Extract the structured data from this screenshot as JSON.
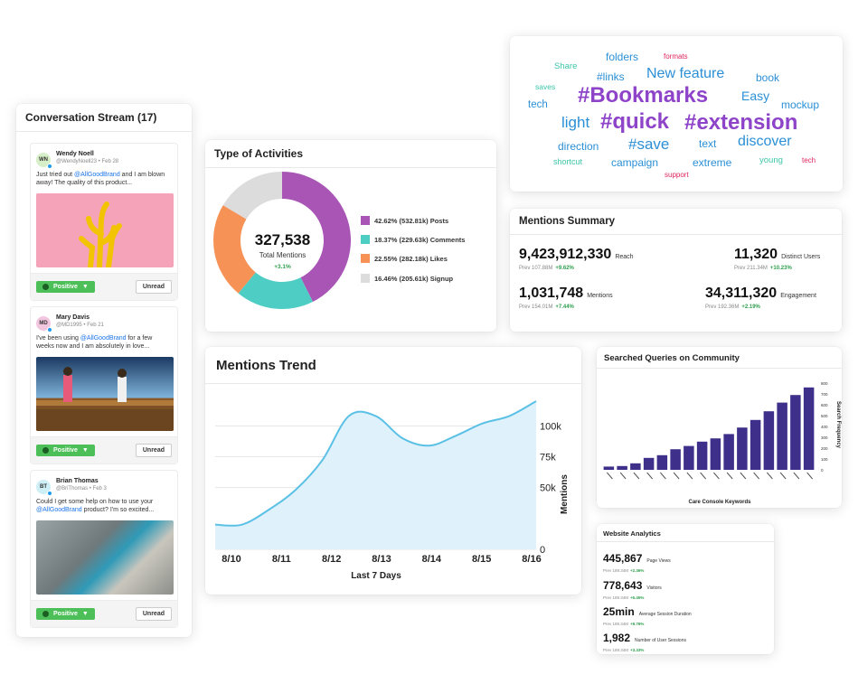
{
  "conversation": {
    "title": "Conversation Stream (17)",
    "posts": [
      {
        "initials": "WN",
        "name": "Wendy Noell",
        "meta": "@WendyNoell23 • Feb 28",
        "text_before": "Just tried out ",
        "mention": "@AllGoodBrand",
        "text_after": " and I am blown away! The quality of this product...",
        "sentiment": "Positive",
        "unread": "Unread"
      },
      {
        "initials": "MD",
        "name": "Mary Davis",
        "meta": "@MD1995 • Feb 21",
        "text_before": "I've been using ",
        "mention": "@AllGoodBrand",
        "text_after": " for a few weeks now and I am absolutely in love...",
        "sentiment": "Positive",
        "unread": "Unread"
      },
      {
        "initials": "BT",
        "name": "Brian Thomas",
        "meta": "@BriThomas • Feb 3",
        "text_before": "Could I get some help on how to use your ",
        "mention": "@AllGoodBrand",
        "text_after": " product? I'm so excited...",
        "sentiment": "Positive",
        "unread": "Unread"
      }
    ]
  },
  "activities": {
    "title": "Type of Activities",
    "total": "327,538",
    "total_label": "Total Mentions",
    "change": "+3.1%",
    "items": [
      {
        "label": "42.62% (532.81k) Posts",
        "pct": 42.62,
        "color": "#a855b5"
      },
      {
        "label": "18.37% (229.63k) Comments",
        "pct": 18.37,
        "color": "#4ecdc4"
      },
      {
        "label": "22.55% (282.18k) Likes",
        "pct": 22.55,
        "color": "#f79256"
      },
      {
        "label": "16.46% (205.61k) Signup",
        "pct": 16.46,
        "color": "#dcdcdc"
      }
    ]
  },
  "wordcloud": {
    "words": [
      {
        "text": "folders",
        "color": "#2b8fd6"
      },
      {
        "text": "formats",
        "color": "#e0245e"
      },
      {
        "text": "Share",
        "color": "#3cc5a8"
      },
      {
        "text": "#links",
        "color": "#2b8fd6"
      },
      {
        "text": "New feature",
        "color": "#2b8fd6"
      },
      {
        "text": "book",
        "color": "#2b8fd6"
      },
      {
        "text": "saves",
        "color": "#3cc5a8"
      },
      {
        "text": "#Bookmarks",
        "color": "#8e44c9"
      },
      {
        "text": "Easy",
        "color": "#2b8fd6"
      },
      {
        "text": "tech",
        "color": "#2b8fd6"
      },
      {
        "text": "mockup",
        "color": "#2b8fd6"
      },
      {
        "text": "light",
        "color": "#2b8fd6"
      },
      {
        "text": "#quick",
        "color": "#8e44c9"
      },
      {
        "text": "#extension",
        "color": "#8e44c9"
      },
      {
        "text": "direction",
        "color": "#2b8fd6"
      },
      {
        "text": "#save",
        "color": "#2b8fd6"
      },
      {
        "text": "text",
        "color": "#2b8fd6"
      },
      {
        "text": "discover",
        "color": "#2b8fd6"
      },
      {
        "text": "shortcut",
        "color": "#3cc5a8"
      },
      {
        "text": "campaign",
        "color": "#2b8fd6"
      },
      {
        "text": "extreme",
        "color": "#2b8fd6"
      },
      {
        "text": "young",
        "color": "#3cc5a8"
      },
      {
        "text": "tech",
        "color": "#e0245e"
      },
      {
        "text": "support",
        "color": "#e0245e"
      }
    ]
  },
  "summary": {
    "title": "Mentions Summary",
    "metrics": [
      {
        "value": "9,423,912,330",
        "label": "Reach",
        "prev": "Prev 107.88M",
        "change": "+9.62%"
      },
      {
        "value": "11,320",
        "label": "Distinct Users",
        "prev": "Prev 211.34M",
        "change": "+10.23%"
      },
      {
        "value": "1,031,748",
        "label": "Mentions",
        "prev": "Prev 154.01M",
        "change": "+7.44%"
      },
      {
        "value": "34,311,320",
        "label": "Engagement",
        "prev": "Prev 192.36M",
        "change": "+2.19%"
      }
    ]
  },
  "trend": {
    "title": "Mentions Trend",
    "xlabel": "Last 7 Days",
    "ylabel": "Mentions",
    "x_ticks": [
      "8/10",
      "8/11",
      "8/12",
      "8/13",
      "8/14",
      "8/15",
      "8/16"
    ],
    "y_ticks": [
      "100k",
      "75k",
      "50k",
      "0"
    ]
  },
  "queries": {
    "title": "Searched Queries on Community",
    "xlabel": "Care Console Keywords",
    "ylabel": "Search Frequency",
    "y_ticks": [
      "800",
      "700",
      "600",
      "500",
      "400",
      "300",
      "200",
      "100",
      "0"
    ]
  },
  "analytics": {
    "title": "Website Analytics",
    "rows": [
      {
        "value": "445,867",
        "label": "Page Views",
        "prev": "Prev 189.34M",
        "change": "+2.36%"
      },
      {
        "value": "778,643",
        "label": "Visitors",
        "prev": "Prev 189.34M",
        "change": "+5.45%"
      },
      {
        "value": "25min",
        "label": "Average Session Duration",
        "prev": "Prev 189.34M",
        "change": "+9.76%"
      },
      {
        "value": "1,982",
        "label": "Number of User Sessions",
        "prev": "Prev 189.34M",
        "change": "+3.33%"
      }
    ]
  },
  "chart_data": [
    {
      "type": "pie",
      "title": "Type of Activities",
      "categories": [
        "Posts",
        "Comments",
        "Likes",
        "Signup"
      ],
      "values": [
        42.62,
        18.37,
        22.55,
        16.46
      ],
      "colors": [
        "#a855b5",
        "#4ecdc4",
        "#f79256",
        "#dcdcdc"
      ]
    },
    {
      "type": "area",
      "title": "Mentions Trend",
      "xlabel": "Last 7 Days",
      "ylabel": "Mentions",
      "x": [
        "8/10",
        "8/10.5",
        "8/11",
        "8/11.5",
        "8/12",
        "8/12.5",
        "8/13",
        "8/13.5",
        "8/14",
        "8/14.5",
        "8/15",
        "8/15.5",
        "8/16"
      ],
      "values": [
        20000,
        20000,
        32000,
        48000,
        72000,
        108000,
        108000,
        90000,
        84000,
        92000,
        102000,
        108000,
        120000
      ],
      "ylim": [
        0,
        120000
      ],
      "color": "#5bc0e6"
    },
    {
      "type": "bar",
      "title": "Searched Queries on Community",
      "xlabel": "Care Console Keywords",
      "ylabel": "Search Frequency",
      "values": [
        30,
        35,
        60,
        110,
        135,
        190,
        220,
        260,
        290,
        330,
        390,
        460,
        540,
        620,
        690,
        760
      ],
      "ylim": [
        0,
        800
      ],
      "color": "#3e2f8a"
    }
  ]
}
